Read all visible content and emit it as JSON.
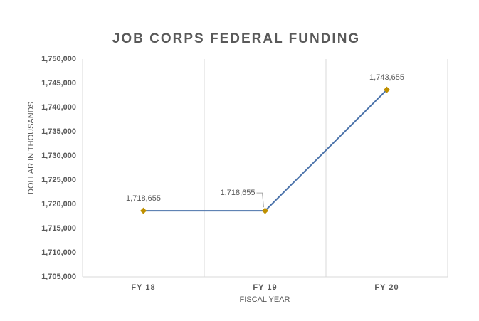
{
  "chart_data": {
    "type": "line",
    "title": "JOB CORPS FEDERAL FUNDING",
    "x_label": "FISCAL YEAR",
    "y_label": "DOLLAR IN THOUSANDS",
    "categories": [
      "FY 18",
      "FY 19",
      "FY 20"
    ],
    "series": [
      {
        "name": "Funding",
        "color": "#4a72aa",
        "marker_color": "#bf9000",
        "values": [
          1718655,
          1718655,
          1743655
        ],
        "value_labels": [
          "1,718,655",
          "1,718,655",
          "1,743,655"
        ]
      }
    ],
    "ylim": [
      1705000,
      1750000
    ],
    "yticks": [
      {
        "value": 1705000,
        "label": "1,705,000"
      },
      {
        "value": 1710000,
        "label": "1,710,000"
      },
      {
        "value": 1715000,
        "label": "1,715,000"
      },
      {
        "value": 1720000,
        "label": "1,720,000"
      },
      {
        "value": 1725000,
        "label": "1,725,000"
      },
      {
        "value": 1730000,
        "label": "1,730,000"
      },
      {
        "value": 1735000,
        "label": "1,735,000"
      },
      {
        "value": 1740000,
        "label": "1,740,000"
      },
      {
        "value": 1745000,
        "label": "1,745,000"
      },
      {
        "value": 1750000,
        "label": "1,750,000"
      }
    ]
  }
}
